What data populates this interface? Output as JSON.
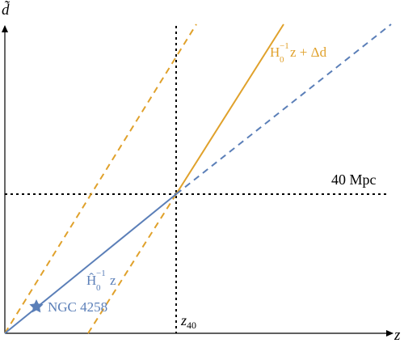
{
  "axes": {
    "x_label": "z",
    "y_label": "d̃"
  },
  "annotations": {
    "distance_label": "40 Mpc",
    "z_marker_main": "z",
    "z_marker_sub": "40",
    "orange_line": {
      "h": "H",
      "sub": "0",
      "sup": "−1",
      "rest": "z + Δd"
    },
    "blue_line": {
      "h": "Ĥ",
      "sub": "0",
      "sup": "−1",
      "rest": "z"
    },
    "anchor_label": "NGC 4258"
  },
  "colors": {
    "blue": "#5b7fb8",
    "orange": "#e0a12b",
    "black": "#000000"
  }
}
